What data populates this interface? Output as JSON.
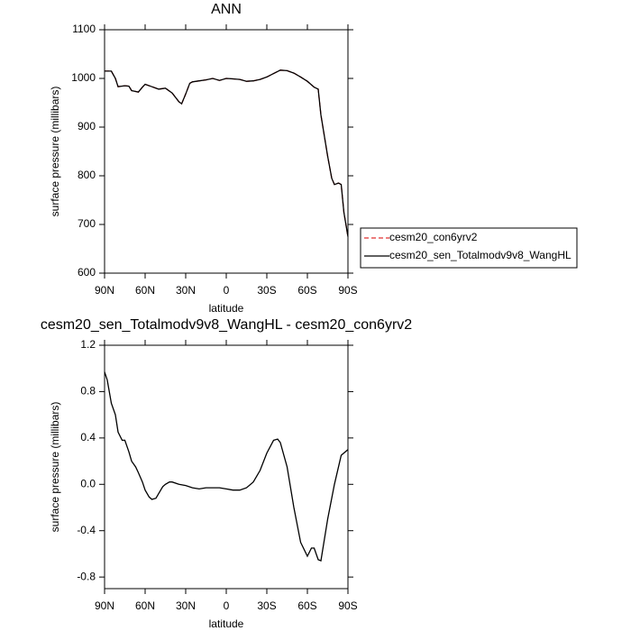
{
  "chart_data": [
    {
      "type": "line",
      "title": "ANN",
      "xlabel": "latitude",
      "ylabel": "surface pressure (millibars)",
      "x": [
        90,
        85,
        82,
        80,
        75,
        72,
        70,
        65,
        62,
        60,
        55,
        50,
        45,
        40,
        35,
        33,
        30,
        27,
        25,
        20,
        15,
        10,
        5,
        0,
        -5,
        -10,
        -15,
        -20,
        -25,
        -30,
        -35,
        -40,
        -45,
        -50,
        -55,
        -60,
        -65,
        -68,
        -70,
        -75,
        -78,
        -80,
        -83,
        -85,
        -87,
        -90
      ],
      "xlim": [
        90,
        -90
      ],
      "xticks": [
        {
          "value": 90,
          "label": "90N"
        },
        {
          "value": 60,
          "label": "60N"
        },
        {
          "value": 30,
          "label": "30N"
        },
        0,
        {
          "value": -30,
          "label": "30S"
        },
        {
          "value": -60,
          "label": "60S"
        },
        {
          "value": -90,
          "label": "90S"
        }
      ],
      "ylim": [
        600,
        1100
      ],
      "yticks": [
        600,
        700,
        800,
        900,
        1000,
        1100
      ],
      "legend": "right",
      "series": [
        {
          "name": "cesm20_con6yrv2",
          "color": "#e03030",
          "dashed": true,
          "values": [
            1015,
            1015,
            1000,
            983,
            985,
            984,
            975,
            972,
            982,
            988,
            983,
            978,
            980,
            970,
            952,
            948,
            968,
            990,
            993,
            995,
            997,
            1000,
            996,
            1000,
            999,
            998,
            994,
            995,
            998,
            1003,
            1010,
            1017,
            1016,
            1011,
            1003,
            994,
            982,
            978,
            925,
            840,
            795,
            782,
            785,
            782,
            725,
            675
          ]
        },
        {
          "name": "cesm20_sen_Totalmodv9v8_WangHL",
          "color": "#000000",
          "dashed": false,
          "values": [
            1015,
            1015,
            1000,
            983,
            985,
            984,
            975,
            972,
            982,
            988,
            983,
            978,
            980,
            970,
            952,
            948,
            968,
            990,
            993,
            995,
            997,
            1000,
            996,
            1000,
            999,
            998,
            994,
            995,
            998,
            1003,
            1010,
            1017,
            1016,
            1011,
            1003,
            994,
            982,
            978,
            925,
            840,
            795,
            782,
            785,
            782,
            725,
            675
          ]
        }
      ]
    },
    {
      "type": "line",
      "title": "cesm20_sen_Totalmodv9v8_WangHL - cesm20_con6yrv2",
      "xlabel": "latitude",
      "ylabel": "surface pressure (millibars)",
      "x": [
        90,
        88,
        85,
        82,
        80,
        77,
        75,
        72,
        70,
        67,
        65,
        62,
        60,
        57,
        55,
        52,
        50,
        47,
        45,
        42,
        40,
        35,
        30,
        25,
        20,
        15,
        10,
        5,
        0,
        -5,
        -10,
        -15,
        -20,
        -25,
        -30,
        -35,
        -38,
        -40,
        -45,
        -50,
        -55,
        -60,
        -63,
        -65,
        -68,
        -70,
        -75,
        -80,
        -85,
        -90
      ],
      "xlim": [
        90,
        -90
      ],
      "xticks": [
        {
          "value": 90,
          "label": "90N"
        },
        {
          "value": 60,
          "label": "60N"
        },
        {
          "value": 30,
          "label": "30N"
        },
        0,
        {
          "value": -30,
          "label": "30S"
        },
        {
          "value": -60,
          "label": "60S"
        },
        {
          "value": -90,
          "label": "90S"
        }
      ],
      "ylim": [
        -0.9,
        1.2
      ],
      "yticks": [
        -0.8,
        -0.4,
        {
          "value": 0,
          "label": "0.0"
        },
        0.4,
        0.8,
        1.2
      ],
      "series": [
        {
          "color": "#000000",
          "dashed": false,
          "values": [
            0.97,
            0.9,
            0.7,
            0.6,
            0.45,
            0.38,
            0.38,
            0.28,
            0.2,
            0.15,
            0.1,
            0.02,
            -0.05,
            -0.11,
            -0.13,
            -0.12,
            -0.08,
            -0.02,
            0.0,
            0.02,
            0.02,
            0.0,
            -0.01,
            -0.03,
            -0.04,
            -0.03,
            -0.03,
            -0.03,
            -0.04,
            -0.05,
            -0.05,
            -0.03,
            0.02,
            0.12,
            0.27,
            0.38,
            0.39,
            0.36,
            0.15,
            -0.2,
            -0.5,
            -0.62,
            -0.55,
            -0.55,
            -0.65,
            -0.66,
            -0.3,
            0.0,
            0.25,
            0.3
          ]
        }
      ]
    }
  ]
}
